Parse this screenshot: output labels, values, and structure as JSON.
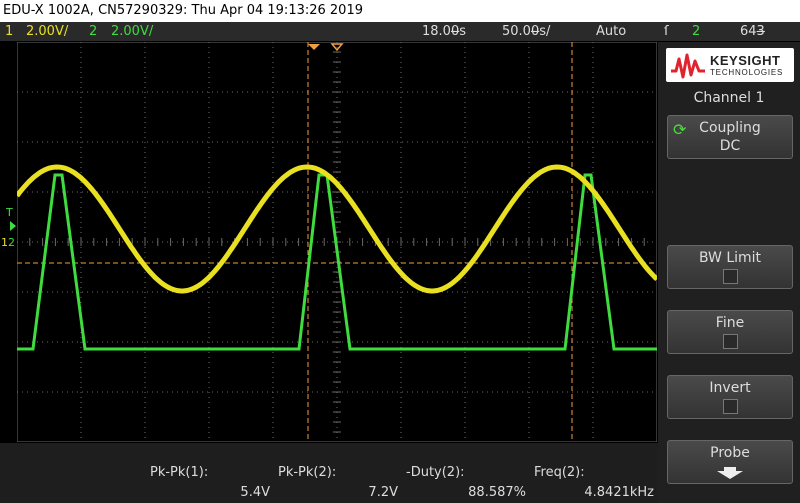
{
  "title_bar": "EDU-X 1002A, CN57290329: Thu Apr 04 19:13:26 2019",
  "status": {
    "ch1_num": "1",
    "ch1_scale": "2.00V/",
    "ch2_num": "2",
    "ch2_scale": "2.00V/",
    "delay": "18.00̶s",
    "timebase": "50.00̶s/",
    "trigger_mode": "Auto",
    "trigger_icon": "ſ",
    "trigger_source": "2",
    "trigger_level": "643̶"
  },
  "markers": {
    "trigger_label": "T",
    "ch1_ground": "1",
    "ch2_ground": "2"
  },
  "measurements": [
    {
      "label": "Pk-Pk(1):",
      "value": "5.4V"
    },
    {
      "label": "Pk-Pk(2):",
      "value": "7.2V"
    },
    {
      "label": "-Duty(2):",
      "value": "88.587%"
    },
    {
      "label": "Freq(2):",
      "value": "4.8421kHz"
    }
  ],
  "side_panel": {
    "brand": "KEYSIGHT",
    "brand_sub": "TECHNOLOGIES",
    "menu_title": "Channel 1",
    "coupling_label": "Coupling",
    "coupling_value": "DC",
    "bw_limit": "BW Limit",
    "fine": "Fine",
    "invert": "Invert",
    "probe": "Probe"
  },
  "colors": {
    "ch1": "#e8e020",
    "ch2": "#3fdc3f",
    "cursor": "#f0a040",
    "grid": "#6a6a6a"
  }
}
